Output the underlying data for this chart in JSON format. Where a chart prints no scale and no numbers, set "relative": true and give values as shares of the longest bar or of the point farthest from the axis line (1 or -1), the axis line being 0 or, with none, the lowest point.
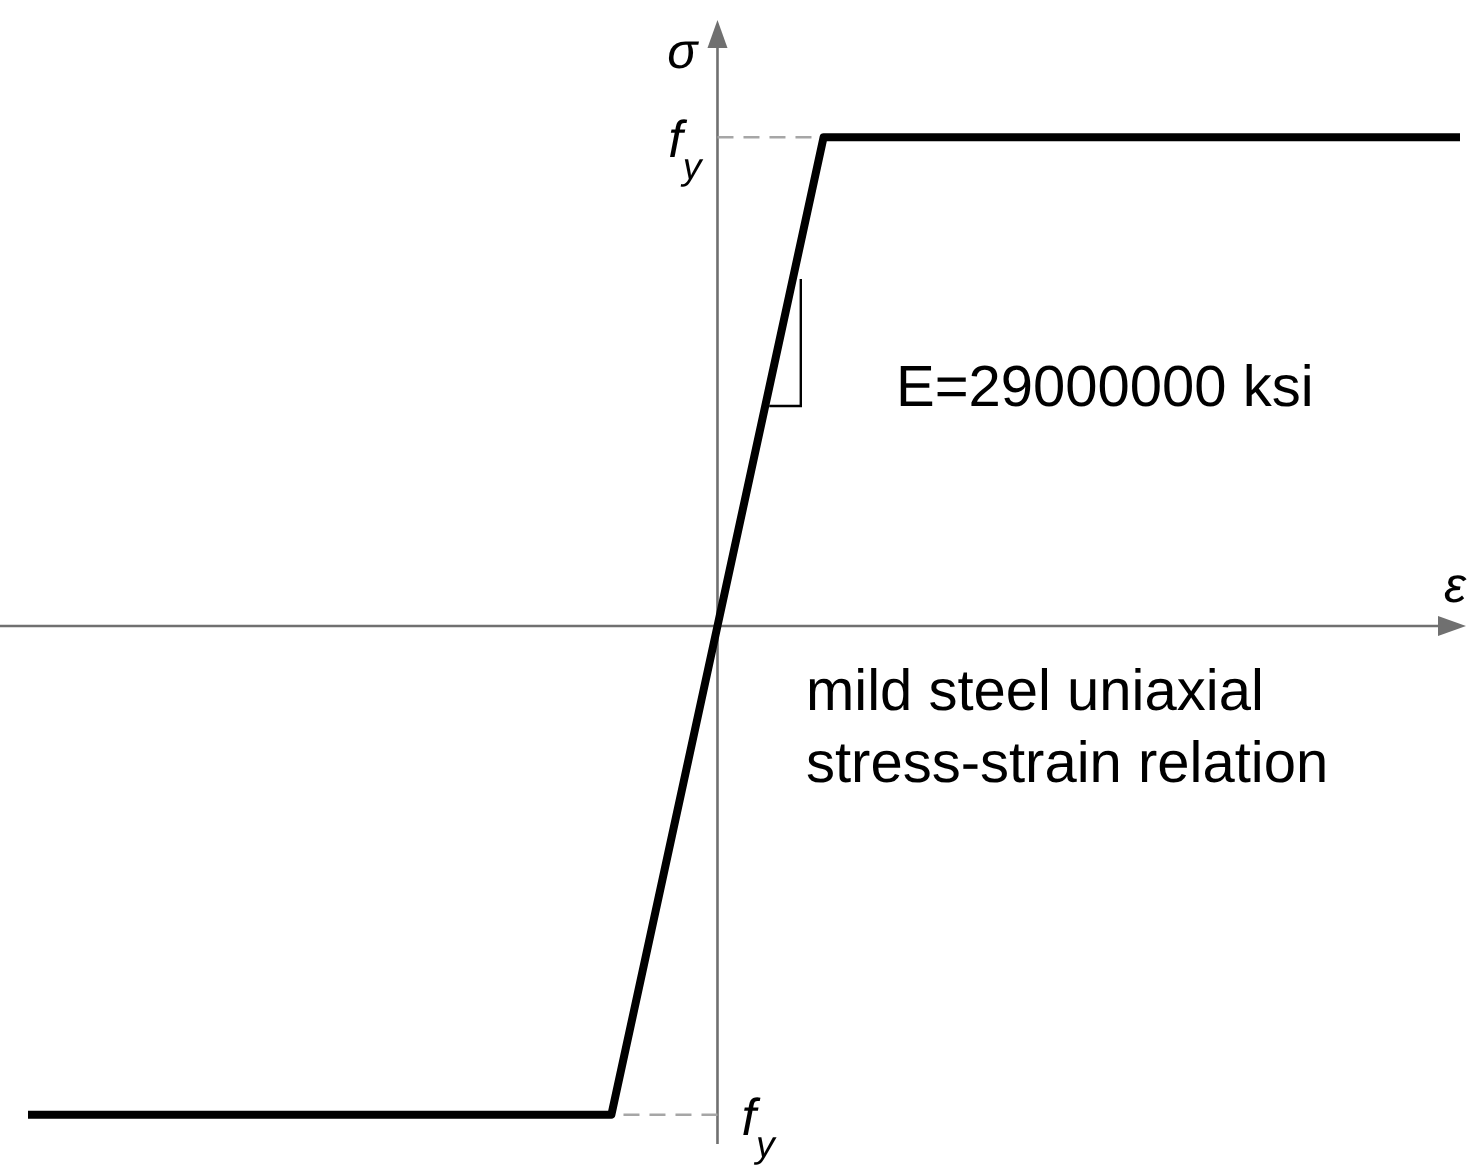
{
  "chart_data": {
    "type": "line",
    "relative": true,
    "xlabel": "ε",
    "ylabel": "σ",
    "annotations": [
      "E=29000000 ksi",
      "mild steel uniaxial stress-strain relation"
    ],
    "categories": [
      null,
      null,
      null,
      null,
      null,
      null,
      null,
      null,
      null,
      null,
      null,
      null,
      null,
      null,
      null,
      null,
      null,
      null,
      null,
      null,
      null,
      null,
      null,
      null,
      null,
      null,
      null,
      null
    ],
    "series": [
      {
        "color": "#000000",
        "values": [
          -1,
          -1,
          -1,
          -1,
          -1,
          -1,
          -1,
          -1,
          -1,
          -1,
          -1,
          -1,
          -0.5,
          0,
          0.5,
          1,
          1,
          1,
          1,
          1,
          1,
          1,
          1,
          1,
          1,
          1,
          1,
          1
        ]
      }
    ],
    "ref_lines": [
      {
        "axis": "y",
        "value": 1,
        "label": "f$_{y}$",
        "color": "#a6a6a6",
        "line_style": "dashed"
      },
      {
        "axis": "y",
        "value": -1,
        "label": "f$_{y}$",
        "color": "#a6a6a6",
        "line_style": "dashed"
      }
    ],
    "line_style": "solid"
  }
}
